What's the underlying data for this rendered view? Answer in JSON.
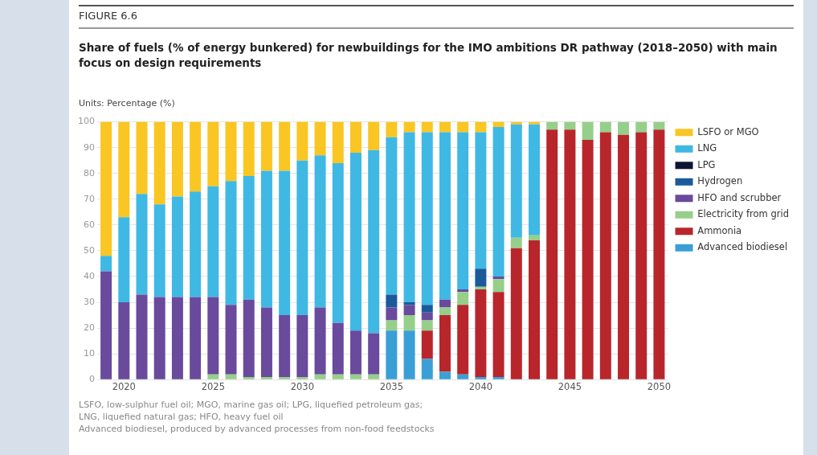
{
  "chart_data": {
    "type": "bar",
    "stacked": true,
    "subtitle": "FIGURE 6.6",
    "title": "Share of fuels (% of energy bunkered) for newbuildings for the IMO ambitions DR pathway (2018–2050) with main focus on design requirements",
    "ylabel": "Units: Percentage (%)",
    "categories": [
      null,
      "2020",
      null,
      null,
      null,
      null,
      "2025",
      null,
      null,
      null,
      null,
      "2030",
      null,
      null,
      null,
      null,
      "2035",
      null,
      null,
      null,
      null,
      "2040",
      null,
      null,
      null,
      null,
      "2045",
      null,
      null,
      null,
      null,
      "2050"
    ],
    "series": [
      {
        "name": "Advanced biodiesel",
        "color": "#3a9fd6",
        "values": [
          0,
          0,
          0,
          0,
          0,
          0,
          0,
          0,
          0,
          0,
          0,
          0,
          0,
          0,
          0,
          0,
          19,
          19,
          8,
          3,
          2,
          1,
          1,
          0,
          0,
          0,
          0,
          0,
          0,
          0,
          0,
          0
        ]
      },
      {
        "name": "Ammonia",
        "color": "#b8262c",
        "values": [
          0,
          0,
          0,
          0,
          0,
          0,
          0,
          0,
          0,
          0,
          0,
          0,
          0,
          0,
          0,
          0,
          0,
          0,
          11,
          22,
          27,
          34,
          33,
          51,
          54,
          97,
          97,
          93,
          96,
          95,
          96,
          97
        ]
      },
      {
        "name": "Electricity from grid",
        "color": "#95cf8a",
        "values": [
          0,
          0,
          0,
          0,
          0,
          0,
          2,
          2,
          1,
          1,
          1,
          1,
          2,
          2,
          2,
          2,
          4,
          6,
          4,
          3,
          5,
          1,
          5,
          4,
          2,
          3,
          3,
          7,
          4,
          5,
          4,
          3
        ]
      },
      {
        "name": "HFO and scrubber",
        "color": "#6a4a9c",
        "values": [
          42,
          30,
          33,
          32,
          32,
          32,
          30,
          27,
          30,
          27,
          24,
          24,
          26,
          20,
          17,
          16,
          5,
          4,
          3,
          3,
          1,
          0,
          1,
          0,
          0,
          0,
          0,
          0,
          0,
          0,
          0,
          0
        ]
      },
      {
        "name": "Hydrogen",
        "color": "#1a5a9c",
        "values": [
          0,
          0,
          0,
          0,
          0,
          0,
          0,
          0,
          0,
          0,
          0,
          0,
          0,
          0,
          0,
          0,
          5,
          1,
          3,
          0,
          0,
          7,
          0,
          0,
          0,
          0,
          0,
          0,
          0,
          0,
          0,
          0
        ]
      },
      {
        "name": "LPG",
        "color": "#0c1633",
        "values": [
          0,
          0,
          0,
          0,
          0,
          0,
          0,
          0,
          0,
          0,
          0,
          0,
          0,
          0,
          0,
          0,
          0,
          0,
          0,
          0,
          0,
          0,
          0,
          0,
          0,
          0,
          0,
          0,
          0,
          0,
          0,
          0
        ]
      },
      {
        "name": "LNG",
        "color": "#3fb8e4",
        "values": [
          6,
          33,
          39,
          36,
          39,
          41,
          43,
          48,
          48,
          53,
          56,
          60,
          59,
          62,
          69,
          71,
          61,
          66,
          67,
          65,
          61,
          53,
          58,
          44,
          43,
          0,
          0,
          0,
          0,
          0,
          0,
          0
        ]
      },
      {
        "name": "LSFO or MGO",
        "color": "#f9c623",
        "values": [
          52,
          37,
          28,
          32,
          29,
          27,
          25,
          23,
          21,
          19,
          19,
          15,
          13,
          16,
          12,
          11,
          6,
          4,
          4,
          4,
          4,
          4,
          2,
          1,
          1,
          0,
          0,
          0,
          0,
          0,
          0,
          0
        ]
      }
    ],
    "ylim": [
      0,
      100
    ],
    "yticks": [
      0,
      10,
      20,
      30,
      40,
      50,
      60,
      70,
      80,
      90,
      100
    ],
    "grid": "y",
    "legend": "right",
    "annotations": [
      "LSFO, low-sulphur fuel oil; MGO, marine gas oil; LPG, liquefied petroleum gas;",
      "LNG, liquefied natural gas; HFO, heavy fuel oil",
      "Advanced biodiesel, produced by advanced processes from non-food feedstocks"
    ]
  }
}
